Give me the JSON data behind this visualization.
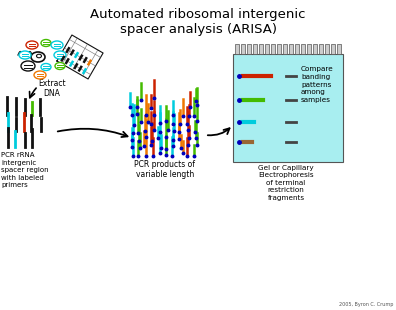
{
  "title": "Automated ribosomal intergenic\nspacer analysis (ARISA)",
  "title_fontsize": 9.5,
  "cyan_bg": "#a8eef0",
  "label_extract": "Extract\nDNA",
  "label_pcr": "PCR rRNA\nintergenic\nspacer region\nwith labeled\nprimers",
  "label_products": "PCR products of\nvariable length",
  "label_gel": "Gel or Capillary\nElectrophoresis\nof terminal\nrestriction\nfragments",
  "label_compare": "Compare\nbanding\npatterns\namong\nsamples",
  "label_copyright": "2005, Byron C. Crump",
  "colors": {
    "red": "#cc2200",
    "green": "#44bb00",
    "cyan": "#00ccdd",
    "orange": "#ee7700",
    "black": "#111111",
    "blue": "#0000bb",
    "gray": "#555555",
    "brown": "#996633",
    "light_gray": "#cccccc",
    "dark_gray": "#444444"
  }
}
